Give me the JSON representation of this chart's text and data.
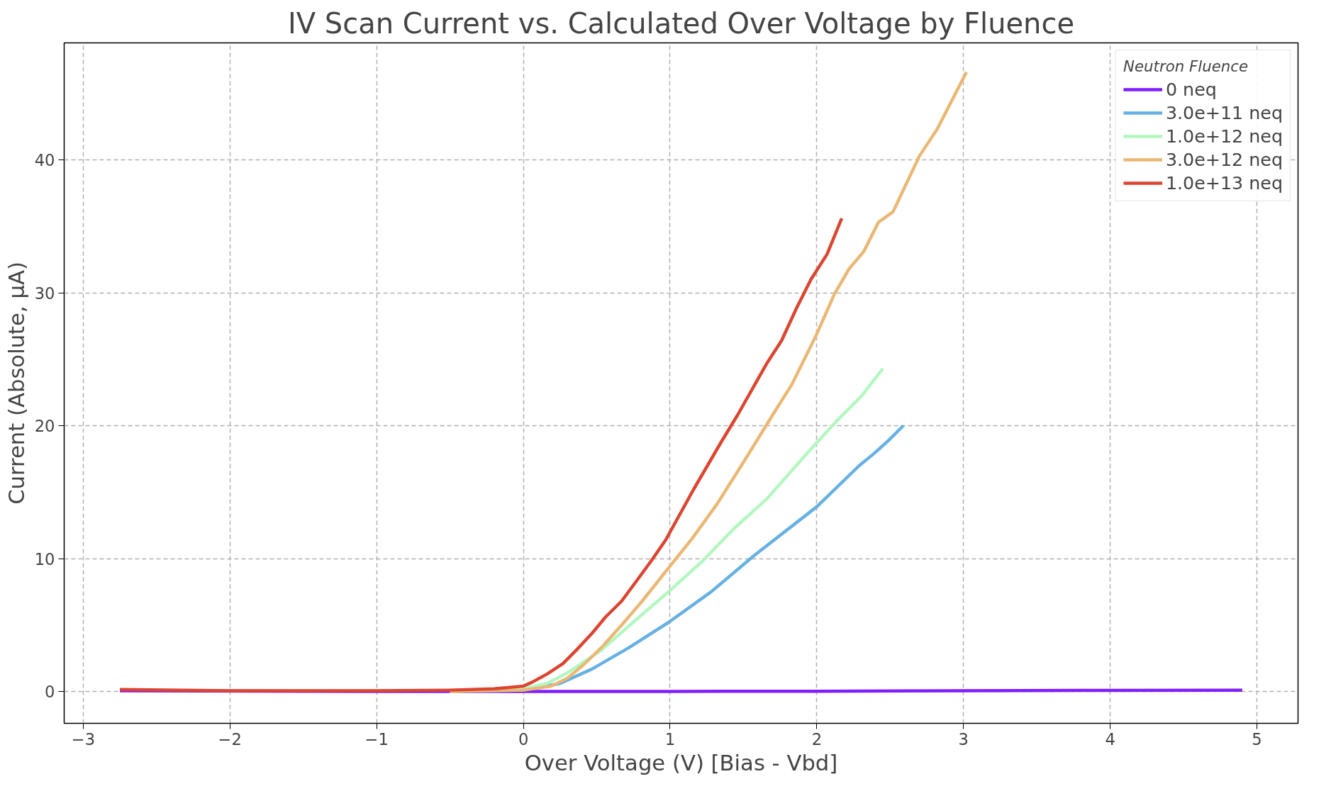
{
  "chart_data": {
    "type": "line",
    "title": "IV Scan Current vs. Calculated Over Voltage by Fluence",
    "xlabel": "Over Voltage (V) [Bias - Vbd]",
    "ylabel": "Current (Absolute, μA)",
    "legend_title": "Neutron Fluence",
    "legend": "top right",
    "grid": true,
    "line_style": "solid",
    "marker": "none",
    "xlim": [
      -3.13,
      5.28
    ],
    "ylim": [
      -2.4,
      48.8
    ],
    "xticks": [
      {
        "value": -3,
        "label": "−3"
      },
      {
        "value": -2,
        "label": "−2"
      },
      {
        "value": -1,
        "label": "−1"
      },
      0,
      1,
      2,
      3,
      4,
      5
    ],
    "yticks": [
      0,
      10,
      20,
      30,
      40
    ],
    "series": [
      {
        "name": "0 neq",
        "color": "#7f1fff",
        "x": [
          -2.75,
          -1,
          0,
          1,
          2,
          3,
          4,
          4.9
        ],
        "values": [
          0.05,
          0.0,
          0.0,
          0.0,
          0.02,
          0.05,
          0.08,
          0.1
        ]
      },
      {
        "name": "3.0e+11 neq",
        "color": "#66b0e3",
        "x": [
          -0.5,
          0,
          0.25,
          0.47,
          0.72,
          0.99,
          1.28,
          1.57,
          2.0,
          2.29,
          2.39,
          2.49,
          2.59
        ],
        "values": [
          0.0,
          0.1,
          0.6,
          1.7,
          3.3,
          5.2,
          7.5,
          10.2,
          13.9,
          17.0,
          17.9,
          18.9,
          20.0
        ]
      },
      {
        "name": "1.0e+12 neq",
        "color": "#b3f7c0",
        "x": [
          -0.5,
          0,
          0.16,
          0.3,
          0.53,
          0.81,
          1.01,
          1.22,
          1.43,
          1.66,
          1.94,
          2.14,
          2.31,
          2.45
        ],
        "values": [
          0.0,
          0.2,
          0.6,
          1.4,
          3.1,
          5.8,
          7.7,
          9.8,
          12.2,
          14.5,
          18.0,
          20.4,
          22.3,
          24.3
        ]
      },
      {
        "name": "3.0e+12 neq",
        "color": "#eab874",
        "x": [
          -0.5,
          0,
          0.19,
          0.3,
          0.41,
          0.54,
          0.67,
          0.81,
          0.99,
          1.15,
          1.32,
          1.52,
          1.71,
          1.83,
          2.0,
          2.12,
          2.22,
          2.32,
          2.42,
          2.52,
          2.7,
          2.82,
          3.02
        ],
        "values": [
          0.0,
          0.1,
          0.4,
          1.0,
          2.0,
          3.4,
          5.0,
          6.8,
          9.3,
          11.5,
          14.1,
          17.6,
          21.0,
          23.1,
          26.9,
          29.9,
          31.8,
          33.1,
          35.3,
          36.1,
          40.3,
          42.3,
          46.6
        ]
      },
      {
        "name": "1.0e+13 neq",
        "color": "#dc4530",
        "x": [
          -2.75,
          -2.0,
          -1.0,
          -0.5,
          -0.2,
          0,
          0.06,
          0.16,
          0.27,
          0.36,
          0.47,
          0.56,
          0.67,
          0.87,
          0.97,
          1.07,
          1.16,
          1.35,
          1.46,
          1.66,
          1.76,
          1.86,
          1.96,
          2.07,
          2.17
        ],
        "values": [
          0.15,
          0.05,
          0.05,
          0.1,
          0.2,
          0.4,
          0.7,
          1.3,
          2.1,
          3.1,
          4.4,
          5.6,
          6.8,
          9.8,
          11.4,
          13.4,
          15.2,
          18.8,
          20.8,
          24.7,
          26.4,
          28.8,
          31.0,
          32.9,
          35.6
        ]
      }
    ]
  }
}
